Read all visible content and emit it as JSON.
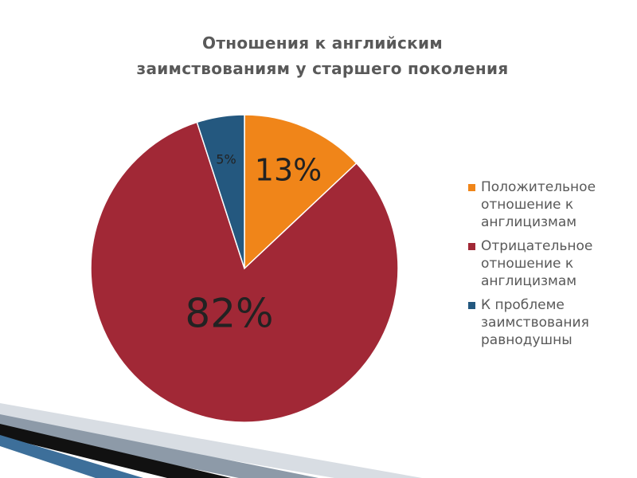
{
  "chart_data": {
    "type": "pie",
    "title": [
      "Отношения к английским",
      "заимствованиям у старшего поколения"
    ],
    "slices": [
      {
        "name": "Положительное отношение к англицизмам",
        "label": "13%",
        "value": 13,
        "color": "#f08519"
      },
      {
        "name": "Отрицательное отношение к англицизмам",
        "label": "82%",
        "value": 82,
        "color": "#a12836"
      },
      {
        "name": "К проблеме заимствования равнодушны",
        "label": "5%",
        "value": 5,
        "color": "#24587f"
      }
    ],
    "legend": {
      "position": "right",
      "items": [
        {
          "lines": [
            "Положительное",
            "отношение к",
            "англицизмам"
          ],
          "color": "#f08519"
        },
        {
          "lines": [
            "Отрицательное",
            "отношение к",
            "англицизмам"
          ],
          "color": "#a12836"
        },
        {
          "lines": [
            "К проблеме",
            "заимствования",
            "равнодушны"
          ],
          "color": "#24587f"
        }
      ]
    }
  }
}
